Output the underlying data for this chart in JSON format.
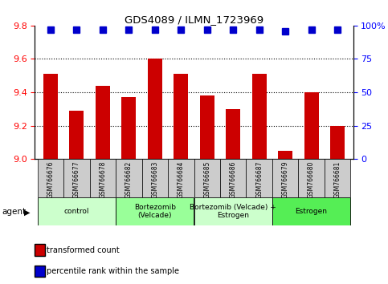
{
  "title": "GDS4089 / ILMN_1723969",
  "samples": [
    "GSM766676",
    "GSM766677",
    "GSM766678",
    "GSM766682",
    "GSM766683",
    "GSM766684",
    "GSM766685",
    "GSM766686",
    "GSM766687",
    "GSM766679",
    "GSM766680",
    "GSM766681"
  ],
  "bar_values": [
    9.51,
    9.29,
    9.44,
    9.37,
    9.6,
    9.51,
    9.38,
    9.3,
    9.51,
    9.05,
    9.4,
    9.2
  ],
  "percentile_values": [
    97,
    97,
    97,
    97,
    97,
    97,
    97,
    97,
    97,
    96,
    97,
    97
  ],
  "bar_color": "#CC0000",
  "percentile_color": "#0000CC",
  "ymin": 9.0,
  "ymax": 9.8,
  "yticks": [
    9.0,
    9.2,
    9.4,
    9.6,
    9.8
  ],
  "y2min": 0,
  "y2max": 100,
  "y2ticks": [
    0,
    25,
    50,
    75,
    100
  ],
  "y2ticklabels": [
    "0",
    "25",
    "50",
    "75",
    "100%"
  ],
  "groups": [
    {
      "label": "control",
      "start": 0,
      "end": 3,
      "color": "#ccffcc"
    },
    {
      "label": "Bortezomib\n(Velcade)",
      "start": 3,
      "end": 6,
      "color": "#99ff99"
    },
    {
      "label": "Bortezomib (Velcade) +\nEstrogen",
      "start": 6,
      "end": 9,
      "color": "#ccffcc"
    },
    {
      "label": "Estrogen",
      "start": 9,
      "end": 12,
      "color": "#55ee55"
    }
  ],
  "agent_label": "agent",
  "legend_items": [
    {
      "label": "transformed count",
      "color": "#CC0000"
    },
    {
      "label": "percentile rank within the sample",
      "color": "#0000CC"
    }
  ],
  "bar_width": 0.55,
  "percentile_marker_size": 6
}
